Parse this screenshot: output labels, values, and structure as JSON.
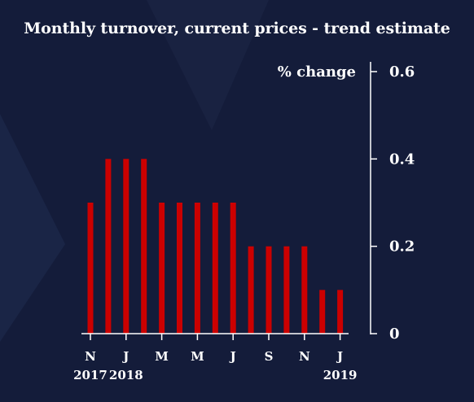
{
  "chart_data": {
    "type": "bar",
    "title": "Monthly turnover, current prices - trend estimate",
    "ylabel": "% change",
    "ylim": [
      0,
      0.6
    ],
    "yticks": [
      "0",
      "0.2",
      "0.4",
      "0.6"
    ],
    "grid": false,
    "x": [
      "2017-11",
      "2017-12",
      "2018-01",
      "2018-02",
      "2018-03",
      "2018-04",
      "2018-05",
      "2018-06",
      "2018-07",
      "2018-08",
      "2018-09",
      "2018-10",
      "2018-11",
      "2018-12",
      "2019-01"
    ],
    "values": [
      0.3,
      0.4,
      0.4,
      0.4,
      0.3,
      0.3,
      0.3,
      0.3,
      0.3,
      0.2,
      0.2,
      0.2,
      0.2,
      0.1,
      0.1
    ],
    "month_labels": [
      "N",
      "",
      "J",
      "",
      "M",
      "",
      "M",
      "",
      "J",
      "",
      "S",
      "",
      "N",
      "",
      "J"
    ],
    "year_labels": [
      "2017",
      "",
      "2018",
      "",
      "",
      "",
      "",
      "",
      "",
      "",
      "",
      "",
      "",
      "",
      "2019"
    ],
    "colors": {
      "bar": "#cc0000",
      "background": "#141c3a",
      "axis": "#ffffff"
    }
  }
}
